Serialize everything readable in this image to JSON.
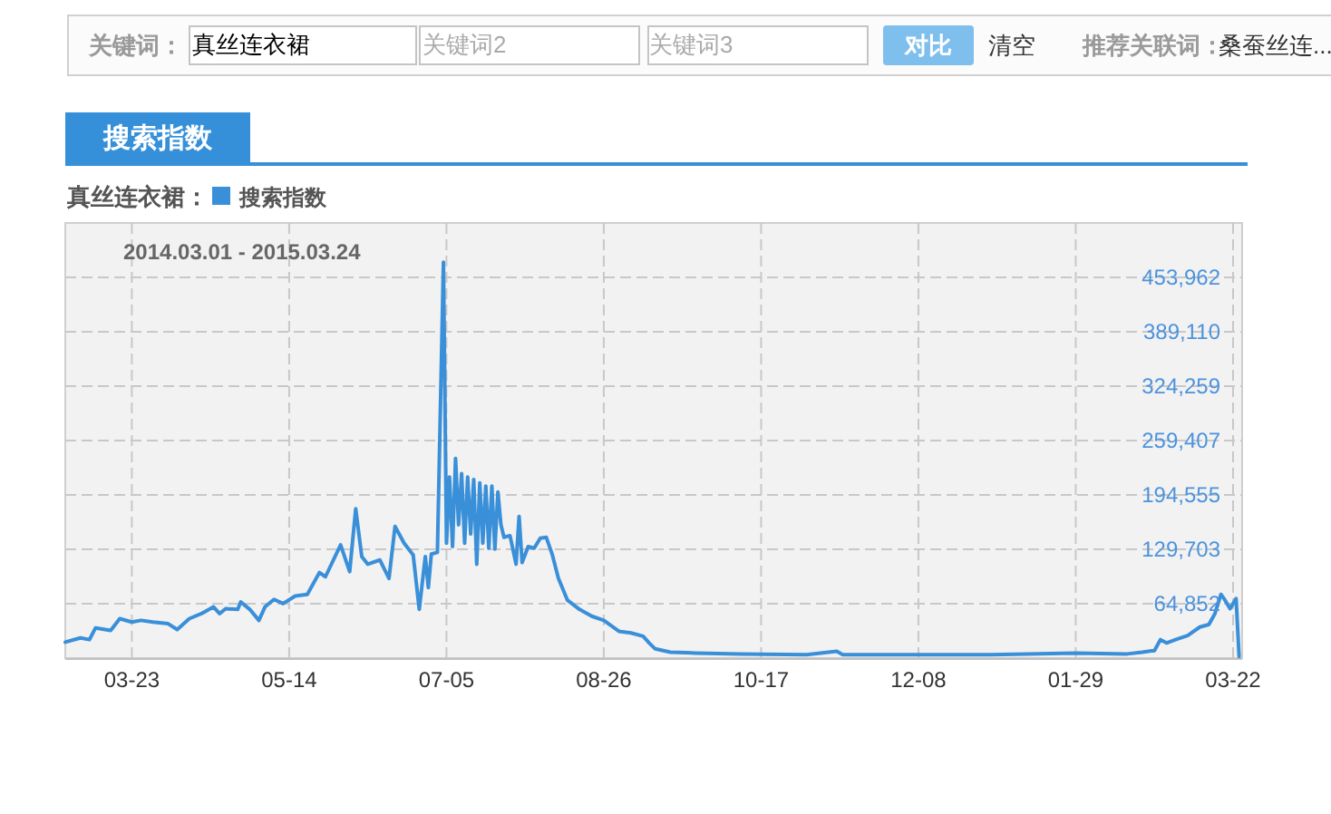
{
  "chart_data": {
    "type": "line",
    "title": "搜索指数",
    "subtitle": "2014.03.01 - 2015.03.24",
    "legend_title": "真丝连衣裙：",
    "legend": "top left",
    "grid": true,
    "annotations": [
      "关键词：",
      "真丝连衣裙",
      "关键词2",
      "关键词3",
      "对比",
      "清空",
      "推荐关联词：",
      "桑蚕丝连..."
    ],
    "xlim": [
      "2014-03-01",
      "2015-03-25"
    ],
    "xticks": [
      {
        "value": "2014-03-23",
        "label": "03-23"
      },
      {
        "value": "2014-05-14",
        "label": "05-14"
      },
      {
        "value": "2014-07-05",
        "label": "07-05"
      },
      {
        "value": "2014-08-26",
        "label": "08-26"
      },
      {
        "value": "2014-10-17",
        "label": "10-17"
      },
      {
        "value": "2014-12-08",
        "label": "12-08"
      },
      {
        "value": "2015-01-29",
        "label": "01-29"
      },
      {
        "value": "2015-03-22",
        "label": "03-22"
      }
    ],
    "ylim": [
      0,
      518814
    ],
    "yticks": [
      {
        "value": 64852,
        "label": "64,852"
      },
      {
        "value": 129703,
        "label": "129,703"
      },
      {
        "value": 194555,
        "label": "194,555"
      },
      {
        "value": 259407,
        "label": "259,407"
      },
      {
        "value": 324259,
        "label": "324,259"
      },
      {
        "value": 389110,
        "label": "389,110"
      },
      {
        "value": 453962,
        "label": "453,962"
      }
    ],
    "series": [
      {
        "name": "搜索指数",
        "color": "#3a8fd9",
        "x": [
          "2014-03-01",
          "2014-03-06",
          "2014-03-09",
          "2014-03-11",
          "2014-03-16",
          "2014-03-19",
          "2014-03-23",
          "2014-03-26",
          "2014-03-30",
          "2014-04-04",
          "2014-04-07",
          "2014-04-11",
          "2014-04-15",
          "2014-04-19",
          "2014-04-21",
          "2014-04-23",
          "2014-04-27",
          "2014-04-28",
          "2014-05-01",
          "2014-05-04",
          "2014-05-06",
          "2014-05-09",
          "2014-05-12",
          "2014-05-16",
          "2014-05-20",
          "2014-05-24",
          "2014-05-26",
          "2014-05-31",
          "2014-06-03",
          "2014-06-05",
          "2014-06-07",
          "2014-06-09",
          "2014-06-13",
          "2014-06-16",
          "2014-06-18",
          "2014-06-21",
          "2014-06-24",
          "2014-06-26",
          "2014-06-28",
          "2014-06-29",
          "2014-06-30",
          "2014-07-02",
          "2014-07-04",
          "2014-07-05",
          "2014-07-06",
          "2014-07-07",
          "2014-07-08",
          "2014-07-09",
          "2014-07-10",
          "2014-07-11",
          "2014-07-12",
          "2014-07-13",
          "2014-07-14",
          "2014-07-15",
          "2014-07-16",
          "2014-07-17",
          "2014-07-18",
          "2014-07-19",
          "2014-07-20",
          "2014-07-21",
          "2014-07-22",
          "2014-07-23",
          "2014-07-24",
          "2014-07-26",
          "2014-07-28",
          "2014-07-29",
          "2014-07-30",
          "2014-08-01",
          "2014-08-03",
          "2014-08-05",
          "2014-08-07",
          "2014-08-09",
          "2014-08-11",
          "2014-08-14",
          "2014-08-18",
          "2014-08-22",
          "2014-08-26",
          "2014-08-31",
          "2014-09-04",
          "2014-09-08",
          "2014-09-10",
          "2014-09-12",
          "2014-09-17",
          "2014-09-25",
          "2014-10-10",
          "2014-11-01",
          "2014-11-11",
          "2014-11-13",
          "2014-12-08",
          "2015-01-01",
          "2015-01-29",
          "2015-02-15",
          "2015-02-20",
          "2015-02-24",
          "2015-02-26",
          "2015-02-28",
          "2015-03-03",
          "2015-03-07",
          "2015-03-11",
          "2015-03-14",
          "2015-03-16",
          "2015-03-18",
          "2015-03-19",
          "2015-03-21",
          "2015-03-23",
          "2015-03-24"
        ],
        "values": [
          19000,
          24000,
          22000,
          36000,
          33000,
          47000,
          43000,
          45000,
          43000,
          41000,
          34000,
          47000,
          53000,
          61000,
          53000,
          59000,
          58000,
          67000,
          58000,
          45000,
          61000,
          70000,
          65000,
          74000,
          76000,
          102000,
          97000,
          135000,
          103000,
          178000,
          121000,
          112000,
          117000,
          95000,
          157000,
          137000,
          123000,
          58000,
          121000,
          84000,
          124000,
          126000,
          472000,
          137000,
          216000,
          133000,
          238000,
          159000,
          220000,
          137000,
          216000,
          148000,
          213000,
          112000,
          209000,
          137000,
          205000,
          131000,
          205000,
          130000,
          198000,
          159000,
          144000,
          146000,
          112000,
          169000,
          114000,
          133000,
          131000,
          143000,
          144000,
          123000,
          95000,
          69000,
          58000,
          50000,
          45000,
          32000,
          30000,
          26000,
          18000,
          11000,
          7000,
          6000,
          5000,
          4000,
          8000,
          4000,
          4000,
          4000,
          6000,
          5000,
          7000,
          9000,
          22000,
          18000,
          22000,
          27000,
          37000,
          40000,
          53000,
          76000,
          71000,
          59000,
          71000,
          2000
        ]
      }
    ]
  }
}
